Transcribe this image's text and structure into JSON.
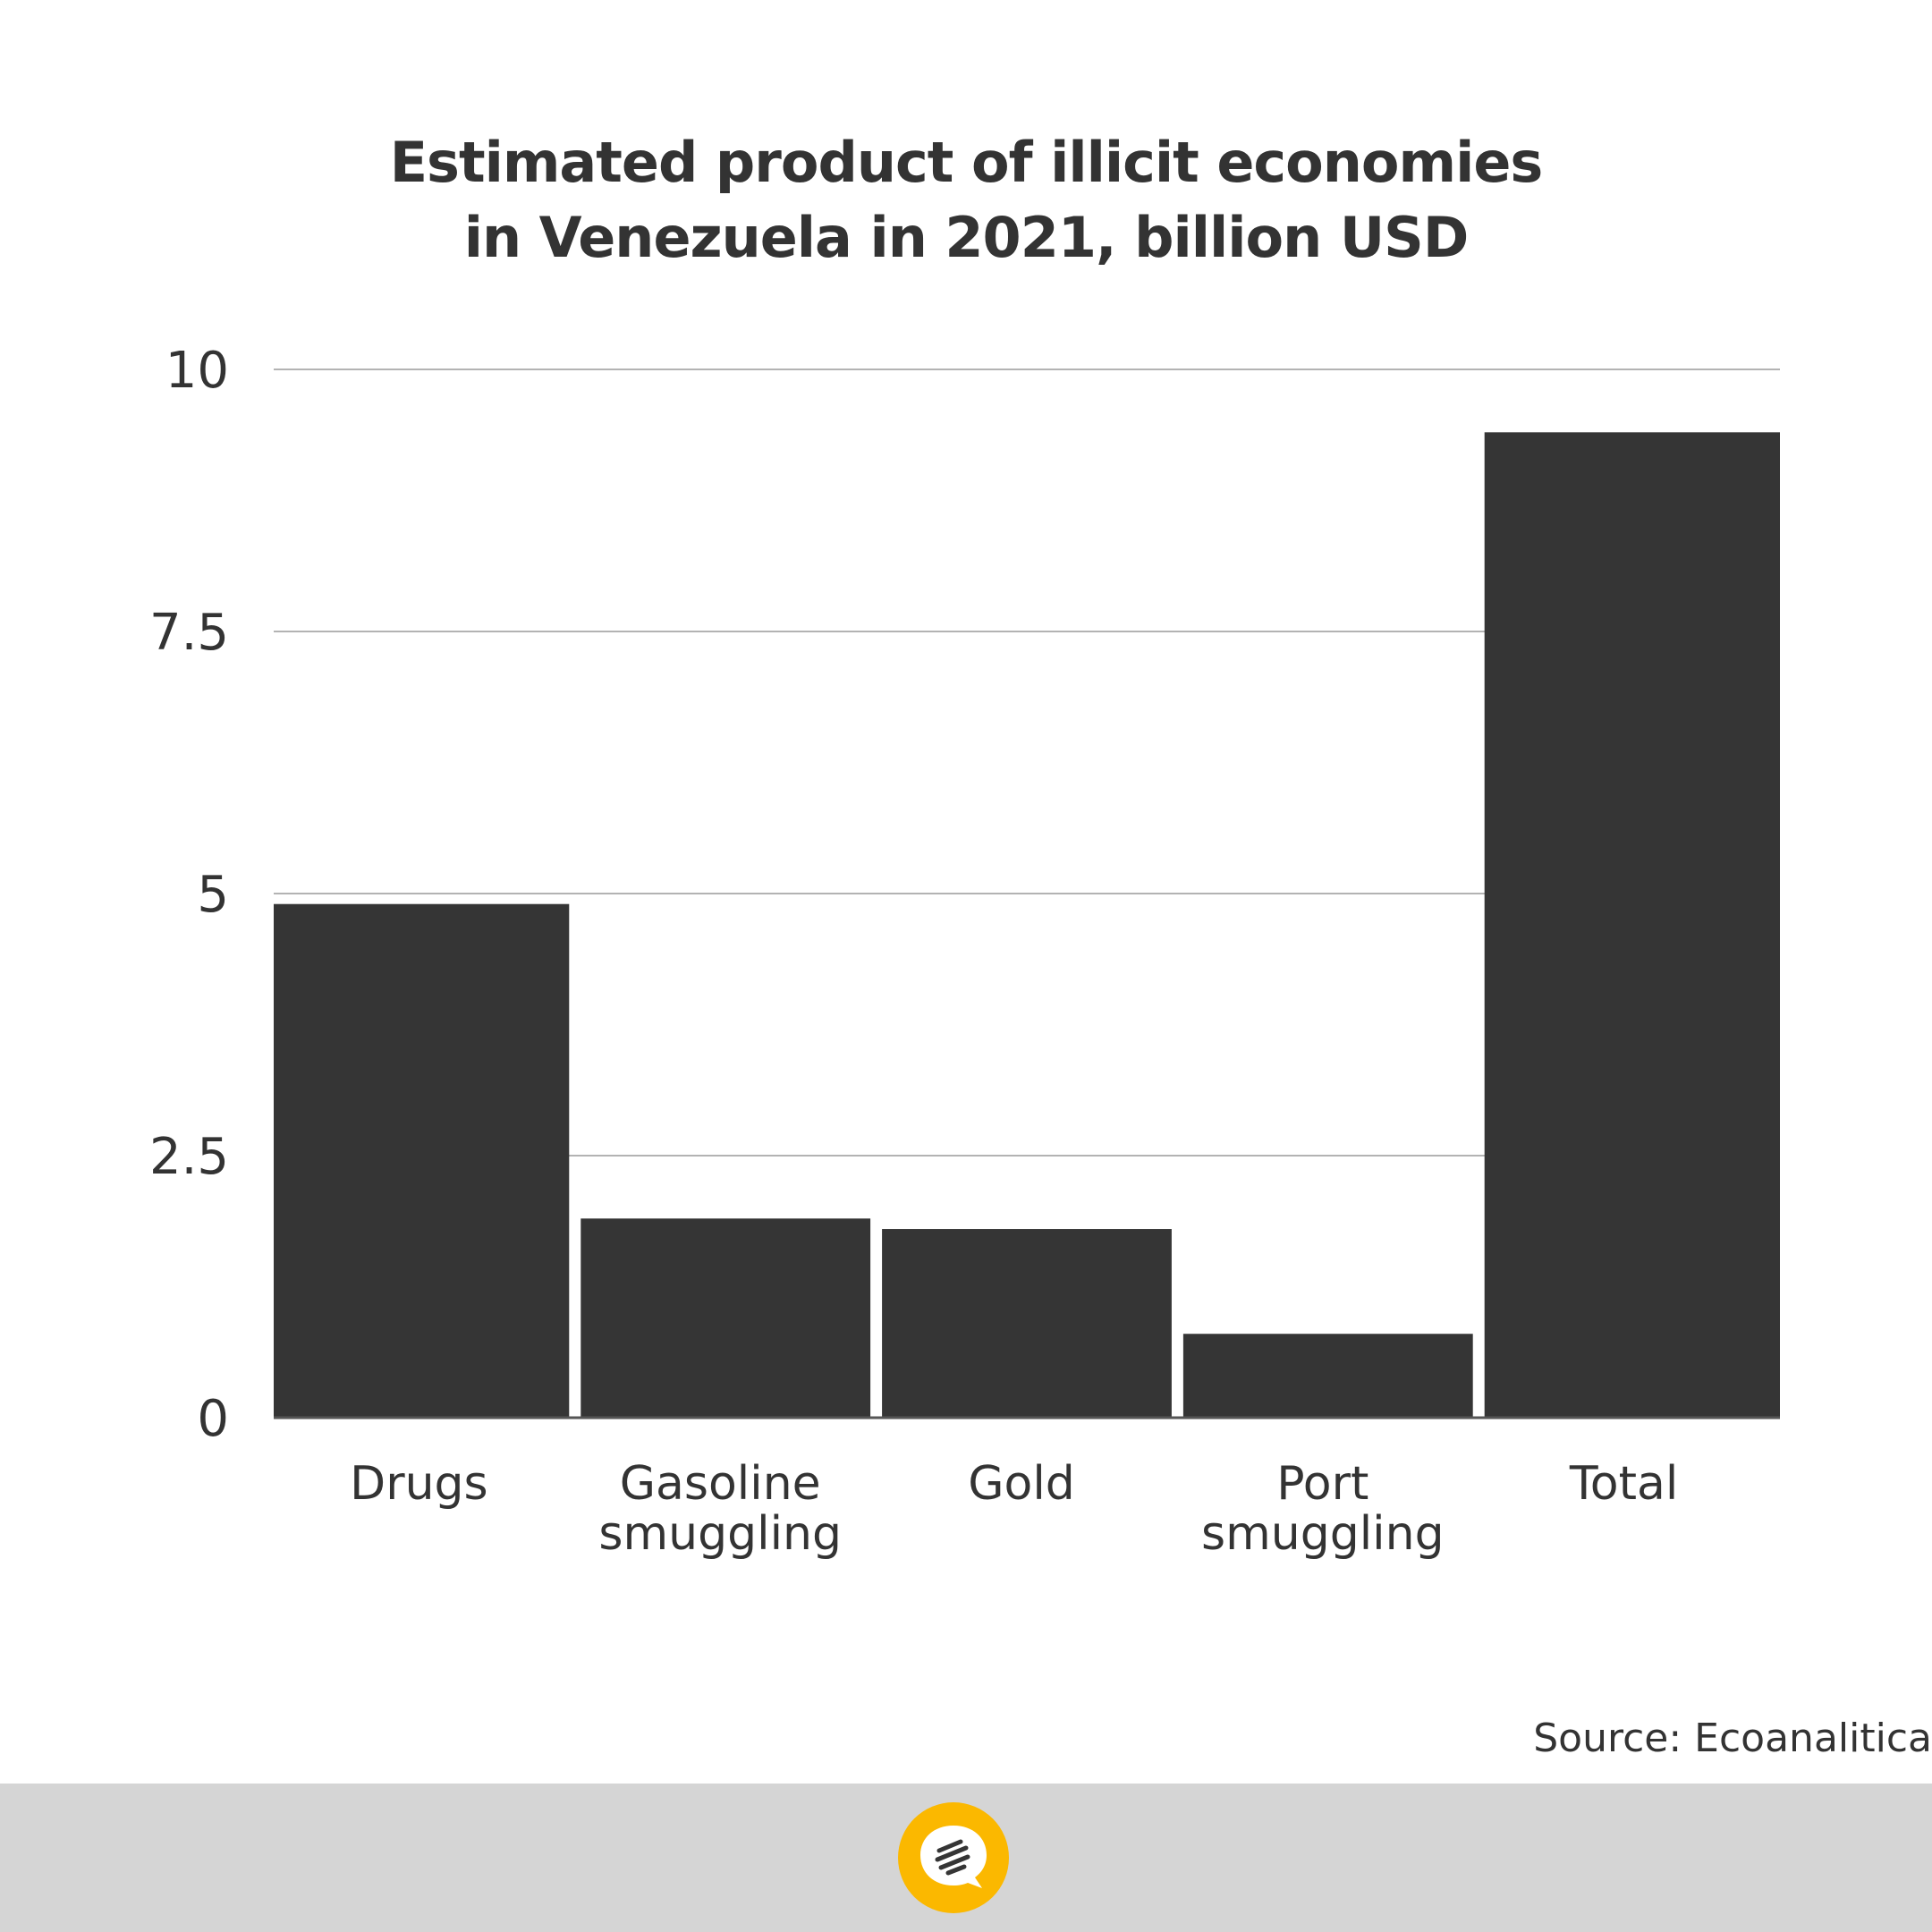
{
  "title": {
    "line1": "Estimated product of illicit economies",
    "line2": "in Venezuela in 2021, billion USD"
  },
  "source": "Source: Ecoanalitica",
  "colors": {
    "bar": "#353535",
    "gridline": "#b3b3b3",
    "text": "#333333",
    "footer": "#d5d5d5",
    "logo": "#fbb800"
  },
  "logo": {
    "icon": "speech-bubble-logo-icon"
  },
  "chart_data": {
    "type": "bar",
    "categories": [
      [
        "Drugs"
      ],
      [
        "Gasoline",
        "smuggling"
      ],
      [
        "Gold"
      ],
      [
        "Port",
        "smuggling"
      ],
      [
        "Total"
      ]
    ],
    "values": [
      4.9,
      1.9,
      1.8,
      0.8,
      9.4
    ],
    "ylim": [
      0,
      10
    ],
    "yticks": [
      0,
      2.5,
      5,
      7.5,
      10
    ],
    "ytick_labels": [
      "0",
      "2.5",
      "5",
      "7.5",
      "10"
    ],
    "grid": true,
    "legend": "none"
  }
}
